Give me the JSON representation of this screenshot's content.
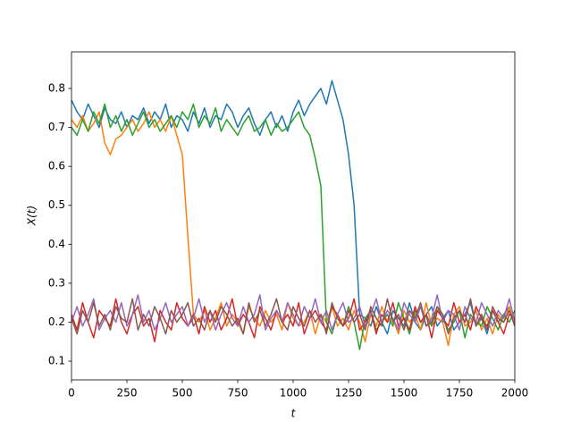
{
  "chart_data": {
    "type": "line",
    "xlabel": "t",
    "ylabel": "X(t)",
    "x": [
      0,
      25,
      50,
      75,
      100,
      125,
      150,
      175,
      200,
      225,
      250,
      275,
      300,
      325,
      350,
      375,
      400,
      425,
      450,
      475,
      500,
      525,
      550,
      575,
      600,
      625,
      650,
      675,
      700,
      725,
      750,
      775,
      800,
      825,
      850,
      875,
      900,
      925,
      950,
      975,
      1000,
      1025,
      1050,
      1075,
      1100,
      1125,
      1150,
      1175,
      1200,
      1225,
      1250,
      1275,
      1300,
      1325,
      1350,
      1375,
      1400,
      1425,
      1450,
      1475,
      1500,
      1525,
      1550,
      1575,
      1600,
      1625,
      1650,
      1675,
      1700,
      1725,
      1750,
      1775,
      1800,
      1825,
      1850,
      1875,
      1900,
      1925,
      1950,
      1975,
      2000
    ],
    "series": [
      {
        "color": "#1f77b4",
        "values": [
          0.77,
          0.74,
          0.72,
          0.76,
          0.73,
          0.7,
          0.75,
          0.72,
          0.71,
          0.74,
          0.7,
          0.73,
          0.72,
          0.75,
          0.71,
          0.74,
          0.72,
          0.76,
          0.7,
          0.73,
          0.72,
          0.69,
          0.74,
          0.71,
          0.75,
          0.7,
          0.73,
          0.72,
          0.76,
          0.74,
          0.7,
          0.73,
          0.75,
          0.71,
          0.68,
          0.72,
          0.74,
          0.7,
          0.73,
          0.69,
          0.74,
          0.77,
          0.73,
          0.76,
          0.78,
          0.8,
          0.76,
          0.82,
          0.77,
          0.72,
          0.63,
          0.5,
          0.22,
          0.21,
          0.19,
          0.24,
          0.2,
          0.17,
          0.23,
          0.21,
          0.19,
          0.25,
          0.2,
          0.18,
          0.22,
          0.24,
          0.19,
          0.21,
          0.23,
          0.18,
          0.2,
          0.22,
          0.25,
          0.19,
          0.21,
          0.17,
          0.23,
          0.2,
          0.22,
          0.24,
          0.19
        ]
      },
      {
        "color": "#ff7f0e",
        "values": [
          0.72,
          0.7,
          0.73,
          0.69,
          0.71,
          0.74,
          0.66,
          0.63,
          0.67,
          0.68,
          0.7,
          0.72,
          0.69,
          0.71,
          0.74,
          0.7,
          0.72,
          0.69,
          0.73,
          0.68,
          0.63,
          0.42,
          0.22,
          0.2,
          0.23,
          0.18,
          0.21,
          0.25,
          0.19,
          0.22,
          0.2,
          0.17,
          0.24,
          0.21,
          0.19,
          0.23,
          0.2,
          0.22,
          0.18,
          0.25,
          0.21,
          0.19,
          0.2,
          0.23,
          0.17,
          0.22,
          0.2,
          0.24,
          0.19,
          0.21,
          0.18,
          0.23,
          0.2,
          0.15,
          0.22,
          0.19,
          0.24,
          0.2,
          0.21,
          0.17,
          0.23,
          0.2,
          0.22,
          0.18,
          0.25,
          0.19,
          0.21,
          0.2,
          0.14,
          0.22,
          0.24,
          0.19,
          0.2,
          0.23,
          0.18,
          0.21,
          0.17,
          0.22,
          0.2,
          0.24,
          0.19
        ]
      },
      {
        "color": "#2ca02c",
        "values": [
          0.7,
          0.68,
          0.72,
          0.69,
          0.74,
          0.71,
          0.76,
          0.7,
          0.73,
          0.69,
          0.72,
          0.68,
          0.71,
          0.74,
          0.7,
          0.72,
          0.69,
          0.71,
          0.73,
          0.7,
          0.74,
          0.72,
          0.76,
          0.7,
          0.73,
          0.71,
          0.75,
          0.69,
          0.72,
          0.7,
          0.68,
          0.71,
          0.73,
          0.69,
          0.7,
          0.72,
          0.68,
          0.71,
          0.69,
          0.7,
          0.72,
          0.74,
          0.7,
          0.68,
          0.62,
          0.55,
          0.2,
          0.17,
          0.22,
          0.19,
          0.24,
          0.2,
          0.13,
          0.21,
          0.23,
          0.18,
          0.2,
          0.22,
          0.19,
          0.25,
          0.21,
          0.17,
          0.23,
          0.2,
          0.22,
          0.19,
          0.24,
          0.21,
          0.18,
          0.2,
          0.23,
          0.16,
          0.22,
          0.2,
          0.19,
          0.24,
          0.21,
          0.18,
          0.22,
          0.2,
          0.23
        ]
      },
      {
        "color": "#d62728",
        "values": [
          0.22,
          0.18,
          0.25,
          0.2,
          0.16,
          0.23,
          0.21,
          0.19,
          0.26,
          0.2,
          0.17,
          0.22,
          0.24,
          0.19,
          0.21,
          0.15,
          0.23,
          0.2,
          0.18,
          0.25,
          0.21,
          0.19,
          0.22,
          0.17,
          0.24,
          0.2,
          0.23,
          0.18,
          0.21,
          0.26,
          0.19,
          0.22,
          0.2,
          0.16,
          0.24,
          0.21,
          0.18,
          0.23,
          0.2,
          0.22,
          0.19,
          0.25,
          0.17,
          0.21,
          0.23,
          0.2,
          0.18,
          0.24,
          0.22,
          0.19,
          0.21,
          0.26,
          0.18,
          0.2,
          0.23,
          0.17,
          0.22,
          0.2,
          0.25,
          0.19,
          0.21,
          0.18,
          0.24,
          0.2,
          0.22,
          0.16,
          0.23,
          0.21,
          0.19,
          0.25,
          0.2,
          0.22,
          0.18,
          0.24,
          0.21,
          0.19,
          0.23,
          0.2,
          0.17,
          0.22,
          0.21
        ]
      },
      {
        "color": "#9467bd",
        "values": [
          0.2,
          0.24,
          0.19,
          0.22,
          0.26,
          0.18,
          0.21,
          0.23,
          0.2,
          0.25,
          0.19,
          0.22,
          0.27,
          0.2,
          0.23,
          0.18,
          0.21,
          0.25,
          0.2,
          0.22,
          0.24,
          0.19,
          0.21,
          0.26,
          0.2,
          0.23,
          0.18,
          0.22,
          0.25,
          0.21,
          0.19,
          0.24,
          0.2,
          0.22,
          0.27,
          0.18,
          0.21,
          0.23,
          0.2,
          0.25,
          0.22,
          0.19,
          0.24,
          0.21,
          0.26,
          0.2,
          0.23,
          0.18,
          0.22,
          0.25,
          0.2,
          0.21,
          0.24,
          0.19,
          0.22,
          0.26,
          0.2,
          0.23,
          0.21,
          0.18,
          0.25,
          0.22,
          0.2,
          0.24,
          0.19,
          0.21,
          0.27,
          0.2,
          0.23,
          0.22,
          0.18,
          0.24,
          0.21,
          0.2,
          0.25,
          0.22,
          0.19,
          0.23,
          0.21,
          0.26,
          0.2
        ]
      },
      {
        "color": "#8c564b",
        "values": [
          0.21,
          0.17,
          0.23,
          0.2,
          0.25,
          0.19,
          0.22,
          0.18,
          0.24,
          0.21,
          0.2,
          0.26,
          0.18,
          0.22,
          0.19,
          0.24,
          0.21,
          0.17,
          0.23,
          0.2,
          0.22,
          0.25,
          0.19,
          0.21,
          0.18,
          0.23,
          0.2,
          0.24,
          0.22,
          0.19,
          0.21,
          0.17,
          0.25,
          0.2,
          0.23,
          0.19,
          0.22,
          0.26,
          0.2,
          0.18,
          0.24,
          0.21,
          0.19,
          0.23,
          0.2,
          0.22,
          0.17,
          0.25,
          0.21,
          0.19,
          0.23,
          0.2,
          0.22,
          0.18,
          0.24,
          0.21,
          0.19,
          0.26,
          0.2,
          0.22,
          0.18,
          0.23,
          0.21,
          0.25,
          0.19,
          0.2,
          0.24,
          0.22,
          0.17,
          0.21,
          0.23,
          0.2,
          0.26,
          0.19,
          0.22,
          0.18,
          0.24,
          0.21,
          0.2,
          0.23,
          0.19
        ]
      }
    ],
    "xlim": [
      0,
      2000
    ],
    "xticks": [
      0,
      250,
      500,
      750,
      1000,
      1250,
      1500,
      1750,
      2000
    ],
    "ylim": [
      0.052,
      0.894
    ],
    "yticks": [
      0.1,
      0.2,
      0.3,
      0.4,
      0.5,
      0.6,
      0.7,
      0.8
    ],
    "grid": false
  }
}
